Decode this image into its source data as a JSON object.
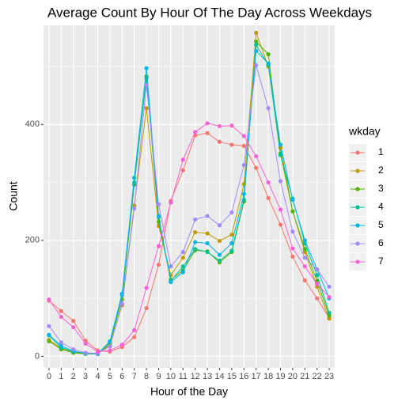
{
  "chart_data": {
    "type": "line",
    "title": "Average Count By Hour Of The Day Across Weekdays",
    "x_label": "Hour of the Day",
    "y_label": "Count",
    "legend_title": "wkday",
    "x": [
      0,
      1,
      2,
      3,
      4,
      5,
      6,
      7,
      8,
      9,
      10,
      11,
      12,
      13,
      14,
      15,
      16,
      17,
      18,
      19,
      20,
      21,
      22,
      23
    ],
    "xlim": [
      -0.45,
      23.45
    ],
    "xticks": [
      0,
      1,
      2,
      3,
      4,
      5,
      6,
      7,
      8,
      9,
      10,
      11,
      12,
      13,
      14,
      15,
      16,
      17,
      18,
      19,
      20,
      21,
      22,
      23
    ],
    "ylim": [
      -20,
      571
    ],
    "yticks": [
      0,
      200,
      400
    ],
    "grid": true,
    "series": [
      {
        "name": "1",
        "color": "#F8766D",
        "values": [
          96,
          78,
          61,
          27,
          10,
          8,
          16,
          33,
          83,
          158,
          268,
          321,
          381,
          385,
          370,
          365,
          363,
          325,
          273,
          227,
          172,
          131,
          100,
          66
        ]
      },
      {
        "name": "2",
        "color": "#C49A00",
        "values": [
          28,
          14,
          7,
          5,
          4,
          20,
          88,
          260,
          428,
          225,
          140,
          170,
          214,
          212,
          199,
          210,
          297,
          558,
          500,
          360,
          250,
          180,
          120,
          65
        ]
      },
      {
        "name": "3",
        "color": "#53B400",
        "values": [
          26,
          12,
          6,
          4,
          4,
          22,
          98,
          296,
          483,
          232,
          132,
          148,
          183,
          181,
          162,
          180,
          267,
          543,
          521,
          350,
          250,
          185,
          130,
          70
        ]
      },
      {
        "name": "4",
        "color": "#00C094",
        "values": [
          36,
          15,
          8,
          5,
          4,
          25,
          105,
          300,
          480,
          240,
          130,
          155,
          185,
          180,
          165,
          182,
          270,
          537,
          503,
          347,
          272,
          195,
          140,
          75
        ]
      },
      {
        "name": "5",
        "color": "#00B6EB",
        "values": [
          37,
          18,
          9,
          5,
          4,
          26,
          108,
          308,
          497,
          242,
          128,
          145,
          197,
          195,
          175,
          195,
          280,
          527,
          505,
          365,
          270,
          200,
          150,
          100
        ]
      },
      {
        "name": "6",
        "color": "#A58AFF",
        "values": [
          52,
          24,
          12,
          6,
          5,
          17,
          90,
          255,
          468,
          262,
          155,
          180,
          236,
          242,
          226,
          248,
          330,
          502,
          428,
          302,
          215,
          170,
          150,
          120
        ]
      },
      {
        "name": "7",
        "color": "#FB61D7",
        "values": [
          98,
          68,
          50,
          22,
          8,
          10,
          20,
          45,
          118,
          190,
          265,
          339,
          387,
          402,
          397,
          398,
          380,
          345,
          300,
          253,
          186,
          155,
          125,
          102
        ]
      }
    ]
  }
}
